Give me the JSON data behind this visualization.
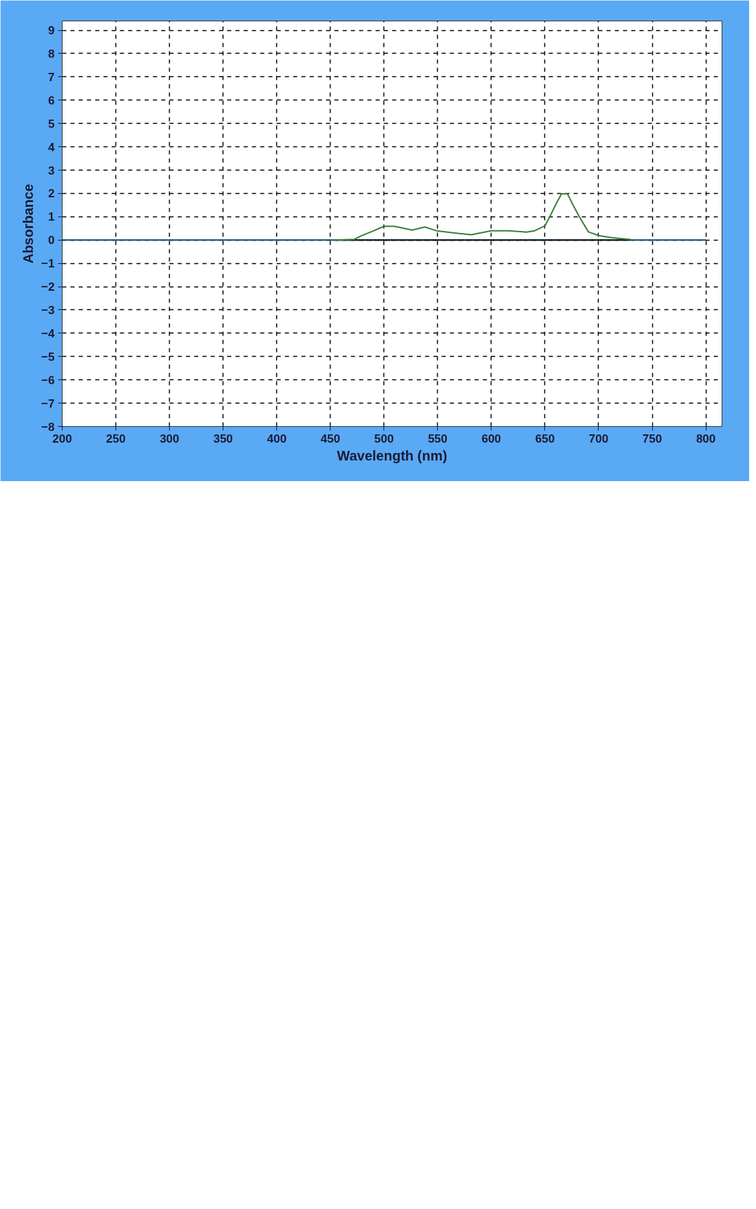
{
  "chart_data": {
    "type": "line",
    "xlabel": "Wavelength (nm)",
    "ylabel": "Absorbance",
    "xlim": [
      200,
      815
    ],
    "ylim": [
      -8,
      9.4
    ],
    "xticks": [
      200,
      250,
      300,
      350,
      400,
      450,
      500,
      550,
      600,
      650,
      700,
      750,
      800
    ],
    "yticks": [
      -8,
      -7,
      -6,
      -5,
      -4,
      -3,
      -2,
      -1,
      0,
      1,
      2,
      3,
      4,
      5,
      6,
      7,
      8,
      9
    ],
    "grid": true,
    "series": [
      {
        "color": "#0b4a6e",
        "line_style": "solid",
        "x": [
          200,
          800
        ],
        "values": [
          0,
          0
        ]
      },
      {
        "color": "#000000",
        "line_style": "dashed",
        "x": [
          455,
          730
        ],
        "values": [
          0,
          0
        ]
      },
      {
        "color": "#3a7d3a",
        "line_style": "solid",
        "x": [
          453,
          472.4,
          478.8,
          489,
          500,
          509.6,
          526.3,
          538,
          548.7,
          568.6,
          581.4,
          600,
          616,
          632.7,
          640.4,
          650,
          654.5,
          660,
          665.4,
          671,
          676,
          682,
          690.5,
          700,
          712,
          730
        ],
        "values": [
          0,
          0.03,
          0.18,
          0.37,
          0.59,
          0.59,
          0.43,
          0.56,
          0.4,
          0.29,
          0.23,
          0.4,
          0.4,
          0.34,
          0.4,
          0.61,
          1.0,
          1.52,
          1.98,
          1.98,
          1.52,
          1.0,
          0.35,
          0.19,
          0.1,
          0.02
        ]
      }
    ]
  }
}
